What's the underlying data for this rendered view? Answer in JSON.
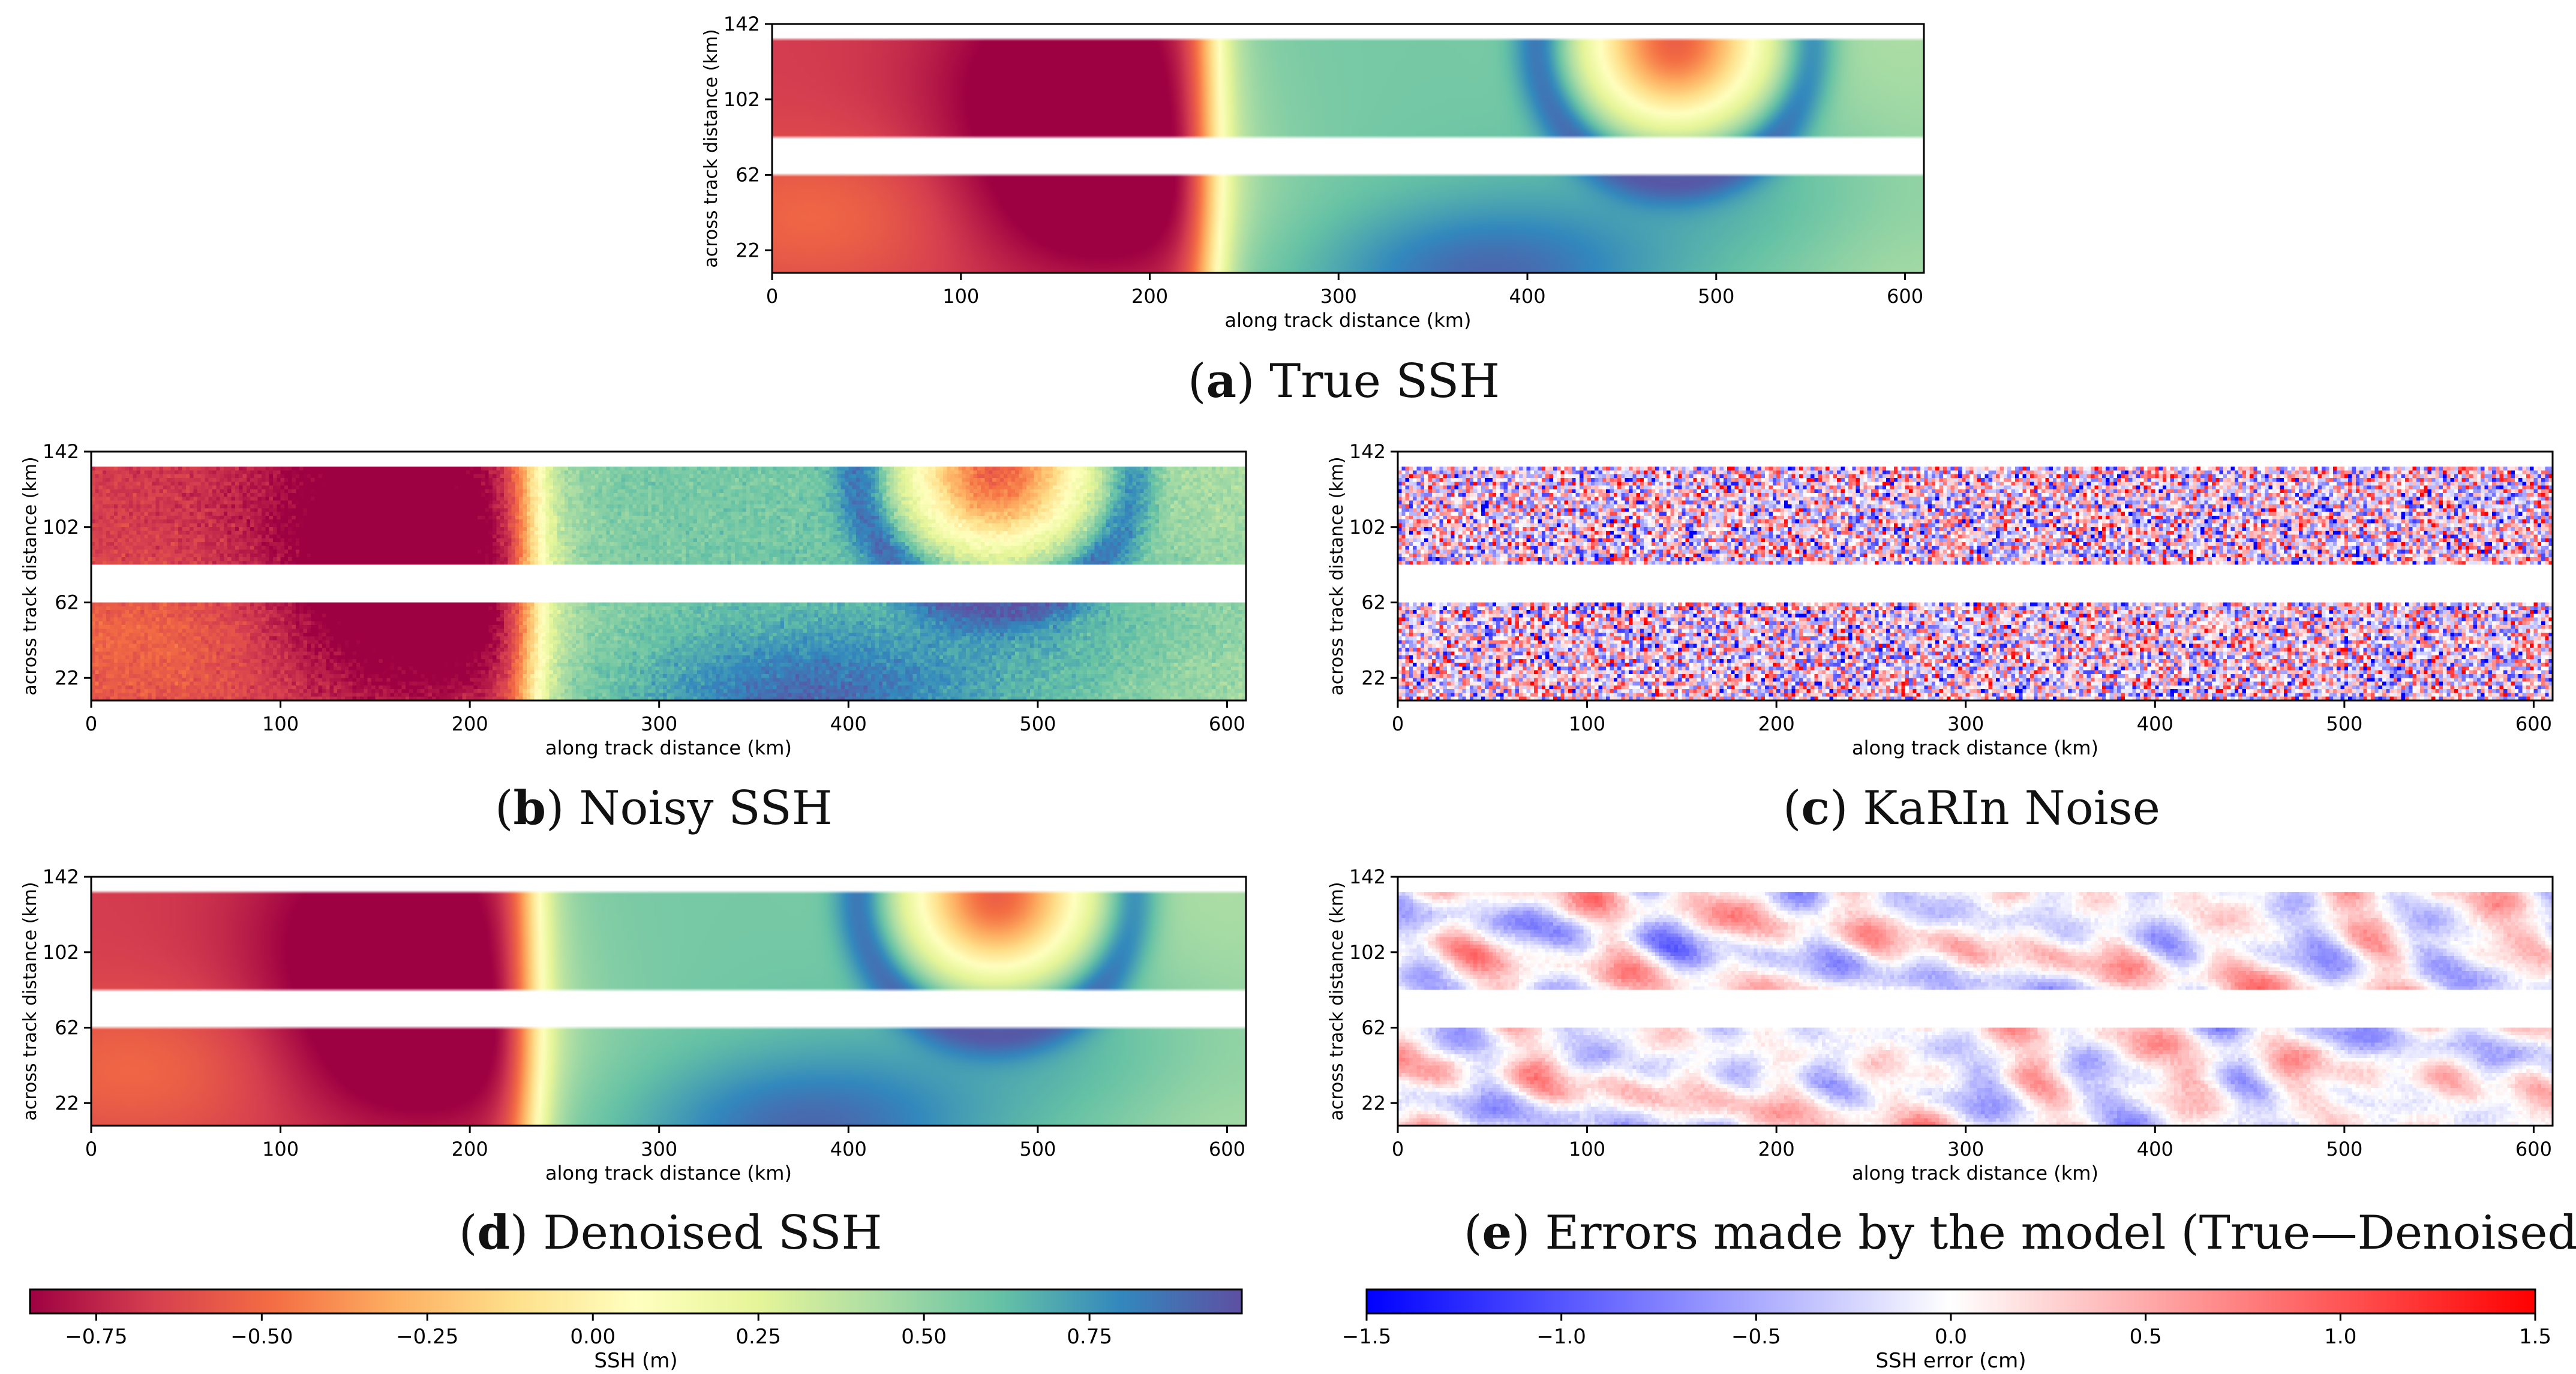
{
  "chart_data": [
    {
      "id": "a",
      "type": "heatmap",
      "title": "True SSH",
      "caption_letter": "a",
      "xlabel": "along track distance (km)",
      "ylabel": "across track distance (km)",
      "xlim": [
        0,
        610
      ],
      "ylim": [
        10,
        142
      ],
      "xticks": [
        0,
        100,
        200,
        300,
        400,
        500,
        600
      ],
      "yticks": [
        22,
        62,
        102,
        142
      ],
      "swaths_km": [
        [
          10,
          62
        ],
        [
          82,
          133
        ]
      ],
      "colormap": "Spectral",
      "field": "ssh",
      "noise": 0,
      "value_range": [
        -0.85,
        0.98
      ],
      "features": [
        {
          "kind": "low",
          "x": 160,
          "y": 110,
          "value": -0.8
        },
        {
          "kind": "low",
          "x": 175,
          "y": 52,
          "value": -0.7
        },
        {
          "kind": "high",
          "x": 375,
          "y": 12,
          "value": 0.95
        },
        {
          "kind": "low_ring",
          "x": 480,
          "y": 125,
          "value": -0.55
        }
      ]
    },
    {
      "id": "b",
      "type": "heatmap",
      "title": "Noisy SSH",
      "caption_letter": "b",
      "xlabel": "along track distance (km)",
      "ylabel": "across track distance (km)",
      "xlim": [
        0,
        610
      ],
      "ylim": [
        10,
        142
      ],
      "xticks": [
        0,
        100,
        200,
        300,
        400,
        500,
        600
      ],
      "yticks": [
        22,
        62,
        102,
        142
      ],
      "swaths_km": [
        [
          10,
          62
        ],
        [
          82,
          133
        ]
      ],
      "colormap": "Spectral",
      "field": "ssh",
      "noise": 0.06
    },
    {
      "id": "c",
      "type": "heatmap",
      "title": "KaRIn Noise",
      "caption_letter": "c",
      "xlabel": "along track distance (km)",
      "ylabel": "across track distance (km)",
      "xlim": [
        0,
        610
      ],
      "ylim": [
        10,
        142
      ],
      "xticks": [
        0,
        100,
        200,
        300,
        400,
        500,
        600
      ],
      "yticks": [
        22,
        62,
        102,
        142
      ],
      "swaths_km": [
        [
          10,
          62
        ],
        [
          82,
          133
        ]
      ],
      "colormap": "bwr",
      "field": "random",
      "pixel_km": 3
    },
    {
      "id": "d",
      "type": "heatmap",
      "title": "Denoised SSH",
      "caption_letter": "d",
      "xlabel": "along track distance (km)",
      "ylabel": "across track distance (km)",
      "xlim": [
        0,
        610
      ],
      "ylim": [
        10,
        142
      ],
      "xticks": [
        0,
        100,
        200,
        300,
        400,
        500,
        600
      ],
      "yticks": [
        22,
        62,
        102,
        142
      ],
      "swaths_km": [
        [
          10,
          62
        ],
        [
          82,
          133
        ]
      ],
      "colormap": "Spectral",
      "field": "ssh",
      "noise": 0
    },
    {
      "id": "e",
      "type": "heatmap",
      "title": "Errors made by the model (True—Denoised)",
      "caption_letter": "e",
      "xlabel": "along track distance (km)",
      "ylabel": "across track distance (km)",
      "xlim": [
        0,
        610
      ],
      "ylim": [
        10,
        142
      ],
      "xticks": [
        0,
        100,
        200,
        300,
        400,
        500,
        600
      ],
      "yticks": [
        22,
        62,
        102,
        142
      ],
      "swaths_km": [
        [
          10,
          62
        ],
        [
          82,
          133
        ]
      ],
      "colormap": "bwr",
      "field": "error"
    }
  ],
  "colorbars": [
    {
      "id": "ssh",
      "label": "SSH (m)",
      "colormap": "Spectral",
      "range": [
        -0.85,
        0.98
      ],
      "ticks": [
        -0.75,
        -0.5,
        -0.25,
        0.0,
        0.25,
        0.5,
        0.75
      ],
      "tick_labels": [
        "−0.75",
        "−0.50",
        "−0.25",
        "0.00",
        "0.25",
        "0.50",
        "0.75"
      ]
    },
    {
      "id": "err",
      "label": "SSH error (cm)",
      "colormap": "bwr",
      "range": [
        -1.5,
        1.5
      ],
      "ticks": [
        -1.5,
        -1.0,
        -0.5,
        0.0,
        0.5,
        1.0,
        1.5
      ],
      "tick_labels": [
        "−1.5",
        "−1.0",
        "−0.5",
        "0.0",
        "0.5",
        "1.0",
        "1.5"
      ]
    }
  ],
  "colors": {
    "spectral": [
      "#9e0142",
      "#d53e4f",
      "#f46d43",
      "#fdae61",
      "#fee08b",
      "#ffffbf",
      "#e6f598",
      "#abdda4",
      "#66c2a5",
      "#3288bd",
      "#5e4fa2"
    ],
    "bwr": [
      "#0000ff",
      "#ffffff",
      "#ff0000"
    ],
    "axis": "#000000"
  }
}
